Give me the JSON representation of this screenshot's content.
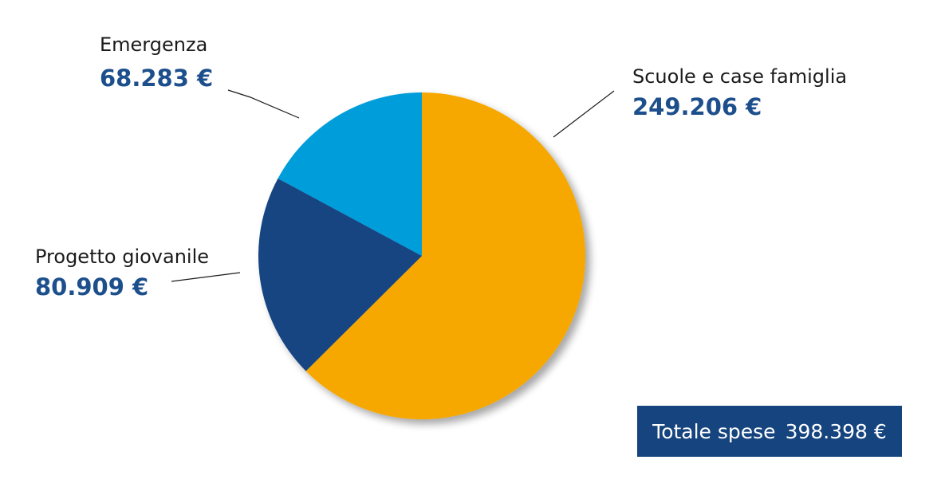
{
  "chart_data": {
    "type": "pie",
    "slices": [
      {
        "name": "Scuole e case famiglia",
        "value": 249206,
        "value_label": "249.206 €",
        "color": "#f6a800"
      },
      {
        "name": "Progetto giovanile",
        "value": 80909,
        "value_label": "80.909 €",
        "color": "#144582"
      },
      {
        "name": "Emergenza",
        "value": 68283,
        "value_label": "68.283 €",
        "color": "#069ddb"
      }
    ],
    "start": "12 o'clock",
    "direction": "clockwise",
    "total": {
      "label": "Totale spese",
      "value": 398398,
      "value_label": "398.398 €"
    }
  }
}
